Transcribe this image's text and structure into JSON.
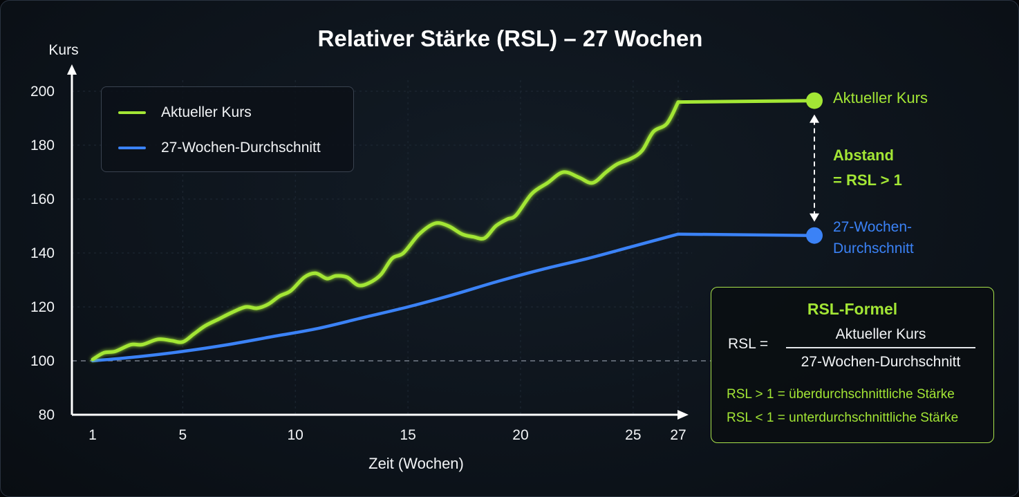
{
  "title": "Relativer Stärke (RSL) – 27 Wochen",
  "colors": {
    "price": "#a3e635",
    "average": "#3b82f6",
    "text": "#f2f4f6",
    "accent": "#a3e635"
  },
  "legend": {
    "items": [
      "Aktueller Kurs",
      "27-Wochen-Durchschnitt"
    ]
  },
  "annotations": {
    "price_end_label": "Aktueller Kurs",
    "gap_label_1": "Abstand",
    "gap_label_2": "= RSL > 1",
    "avg_end_label_1": "27-Wochen-",
    "avg_end_label_2": "Durchschnitt"
  },
  "formula": {
    "title": "RSL-Formel",
    "lhs": "RSL =",
    "numerator": "Aktueller Kurs",
    "denominator": "27-Wochen-Durchschnitt",
    "rule_above": "RSL > 1 = überdurchschnittliche Stärke",
    "rule_below": "RSL < 1 = unterdurchschnittliche Stärke"
  },
  "chart_data": {
    "type": "line",
    "title": "Relativer Stärke (RSL) – 27 Wochen",
    "xlabel": "Zeit (Wochen)",
    "ylabel": "Kurs",
    "xlim": [
      1,
      27
    ],
    "ylim": [
      80,
      200
    ],
    "x_ticks": [
      1,
      5,
      10,
      15,
      20,
      25,
      27
    ],
    "y_ticks": [
      80,
      100,
      120,
      140,
      160,
      180,
      200
    ],
    "reference_line": 100,
    "legend_position": "top-left",
    "grid": true,
    "series": [
      {
        "name": "Aktueller Kurs",
        "x": [
          1,
          1.5,
          2,
          2.7,
          3.2,
          3.9,
          4.5,
          5,
          5.5,
          6,
          6.6,
          7.2,
          7.8,
          8.3,
          8.8,
          9.3,
          9.8,
          10.4,
          10.9,
          11.4,
          11.8,
          12.3,
          12.8,
          13.3,
          13.8,
          14.3,
          14.8,
          15.5,
          16.2,
          16.8,
          17.4,
          17.9,
          18.4,
          18.9,
          19.4,
          19.8,
          20.5,
          21.2,
          21.9,
          22.6,
          23.2,
          23.8,
          24.3,
          24.9,
          25.4,
          25.9,
          26.5,
          27
        ],
        "values": [
          100.5,
          103,
          103.5,
          106,
          106,
          108,
          107.5,
          107,
          110,
          113,
          115.5,
          118,
          120,
          119.5,
          121,
          124,
          126,
          131,
          132.5,
          130.5,
          131.5,
          131,
          128,
          129,
          132,
          138,
          140,
          147,
          151,
          150,
          147,
          146,
          145.5,
          150,
          152.5,
          154,
          162,
          166,
          170,
          168,
          166,
          170,
          173,
          175,
          178,
          185,
          188,
          196
        ]
      },
      {
        "name": "27-Wochen-Durchschnitt",
        "x": [
          1,
          3,
          5,
          7,
          9,
          11,
          13,
          15,
          17,
          19,
          21,
          23,
          25,
          27
        ],
        "values": [
          100,
          101.5,
          103.5,
          106,
          109,
          112,
          116,
          120,
          124.5,
          129.5,
          134,
          138,
          142.5,
          147
        ]
      }
    ]
  }
}
